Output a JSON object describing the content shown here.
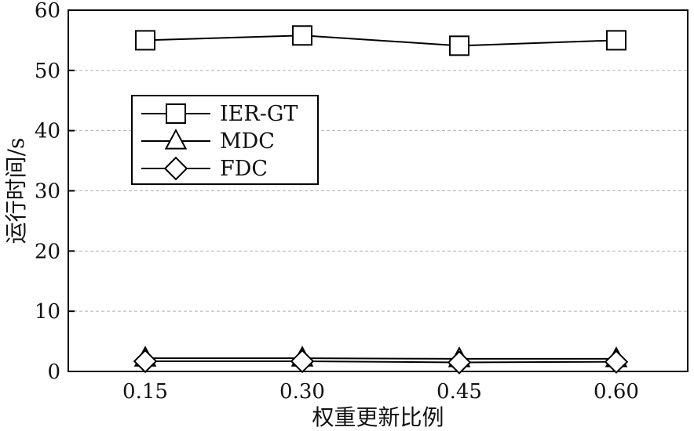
{
  "chart_data": {
    "type": "line",
    "categories": [
      "0.15",
      "0.30",
      "0.45",
      "0.60"
    ],
    "xlabel": "权重更新比例",
    "ylabel": "运行时间/s",
    "ylim": [
      0,
      60
    ],
    "yticks": [
      "0",
      "10",
      "20",
      "30",
      "40",
      "50",
      "60"
    ],
    "grid": "horizontal dashed",
    "legend_position": "upper-left",
    "series": [
      {
        "name": "IER-GT",
        "marker": "square",
        "values": [
          55,
          55.8,
          54.1,
          55
        ]
      },
      {
        "name": "MDC",
        "marker": "triangle",
        "values": [
          2.2,
          2.2,
          2.1,
          2.1
        ]
      },
      {
        "name": "FDC",
        "marker": "diamond",
        "values": [
          1.7,
          1.7,
          1.5,
          1.6
        ]
      }
    ],
    "colors": {
      "line": "#000000",
      "marker_fill": "#ffffff",
      "grid": "#b0b0b0"
    }
  }
}
